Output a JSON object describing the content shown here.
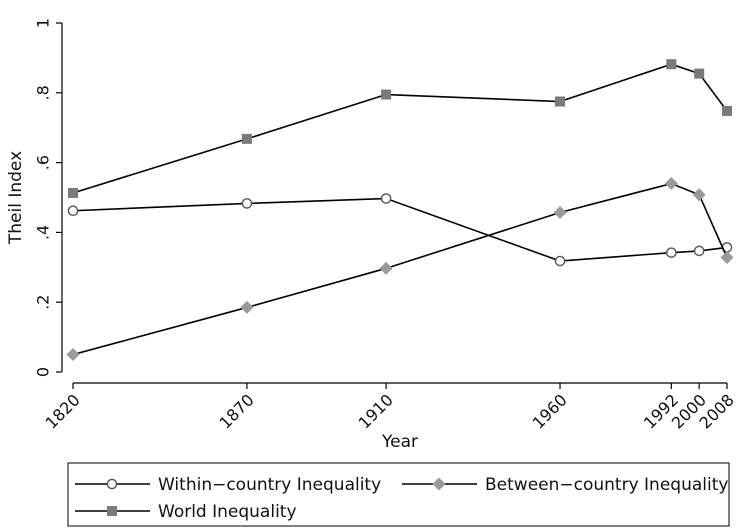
{
  "chart_data": {
    "type": "line",
    "title": "",
    "xlabel": "Year",
    "ylabel": "Theil Index",
    "x": [
      1820,
      1870,
      1910,
      1960,
      1992,
      2000,
      2008
    ],
    "x_tick_labels": [
      "1820",
      "1870",
      "1910",
      "1960",
      "1992",
      "2000",
      "2008"
    ],
    "y_ticks": [
      0,
      0.2,
      0.4,
      0.6,
      0.8,
      1
    ],
    "y_tick_labels": [
      "0",
      ".2",
      ".4",
      ".6",
      ".8",
      "1"
    ],
    "ylim": [
      0,
      1
    ],
    "xlim": [
      1820,
      2008
    ],
    "grid": false,
    "legend_position": "bottom",
    "series": [
      {
        "name": "Within−country Inequality",
        "marker": "hollow-circle",
        "color": "#555555",
        "values": [
          0.462,
          0.483,
          0.497,
          0.318,
          0.342,
          0.347,
          0.357
        ]
      },
      {
        "name": "Between−country Inequality",
        "marker": "diamond",
        "color": "#9a9a9a",
        "values": [
          0.05,
          0.185,
          0.297,
          0.457,
          0.54,
          0.508,
          0.328
        ]
      },
      {
        "name": "World Inequality",
        "marker": "square",
        "color": "#7a7a7a",
        "values": [
          0.513,
          0.668,
          0.795,
          0.775,
          0.882,
          0.855,
          0.748
        ]
      }
    ]
  }
}
